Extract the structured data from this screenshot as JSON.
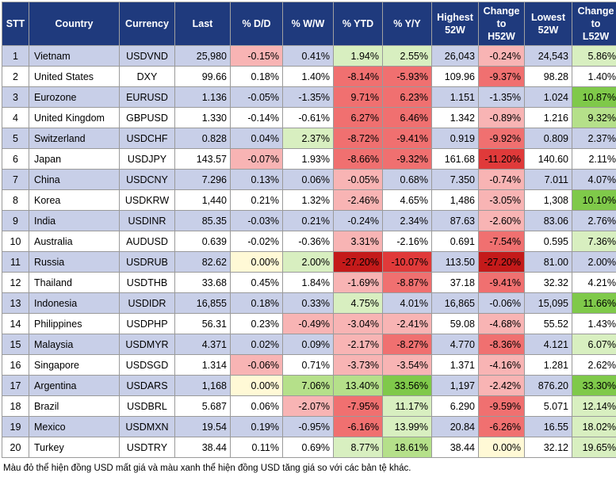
{
  "headers": [
    "STT",
    "Country",
    "Currency",
    "Last",
    "% D/D",
    "% W/W",
    "% YTD",
    "% Y/Y",
    "Highest 52W",
    "Change to H52W",
    "Lowest 52W",
    "Change to L52W"
  ],
  "colors": {
    "header_bg": "#1f3a7d",
    "row_band": "#c8cfe8",
    "red_light": "#f8b4b4",
    "red_mid": "#f07070",
    "red_strong": "#e03a3a",
    "red_dark": "#c41a1a",
    "yellow": "#fff9d6",
    "green_light": "#d8efc0",
    "green_mid": "#b5e08a",
    "green_strong": "#7fc94a"
  },
  "rows": [
    {
      "stt": "1",
      "country": "Vietnam",
      "currency": "USDVND",
      "last": "25,980",
      "dd": "-0.15%",
      "ww": "0.41%",
      "ytd": "1.94%",
      "yy": "2.55%",
      "h52": "26,043",
      "ch52": "-0.24%",
      "l52": "24,543",
      "cl52": "5.86%",
      "tone": {
        "dd": "red_light",
        "ww": "",
        "ytd": "green_light",
        "yy": "green_light",
        "ch52": "red_light",
        "cl52": "green_light"
      }
    },
    {
      "stt": "2",
      "country": "United States",
      "currency": "DXY",
      "last": "99.66",
      "dd": "0.18%",
      "ww": "1.40%",
      "ytd": "-8.14%",
      "yy": "-5.93%",
      "h52": "109.96",
      "ch52": "-9.37%",
      "l52": "98.28",
      "cl52": "1.40%",
      "tone": {
        "dd": "",
        "ww": "",
        "ytd": "red_mid",
        "yy": "red_mid",
        "ch52": "red_mid",
        "cl52": ""
      }
    },
    {
      "stt": "3",
      "country": "Eurozone",
      "currency": "EURUSD",
      "last": "1.136",
      "dd": "-0.05%",
      "ww": "-1.35%",
      "ytd": "9.71%",
      "yy": "6.23%",
      "h52": "1.151",
      "ch52": "-1.35%",
      "l52": "1.024",
      "cl52": "10.87%",
      "tone": {
        "dd": "",
        "ww": "",
        "ytd": "red_mid",
        "yy": "red_mid",
        "ch52": "",
        "cl52": "green_strong"
      }
    },
    {
      "stt": "4",
      "country": "United Kingdom",
      "currency": "GBPUSD",
      "last": "1.330",
      "dd": "-0.14%",
      "ww": "-0.61%",
      "ytd": "6.27%",
      "yy": "6.46%",
      "h52": "1.342",
      "ch52": "-0.89%",
      "l52": "1.216",
      "cl52": "9.32%",
      "tone": {
        "dd": "",
        "ww": "",
        "ytd": "red_mid",
        "yy": "red_mid",
        "ch52": "red_light",
        "cl52": "green_mid"
      }
    },
    {
      "stt": "5",
      "country": "Switzerland",
      "currency": "USDCHF",
      "last": "0.828",
      "dd": "0.04%",
      "ww": "2.37%",
      "ytd": "-8.72%",
      "yy": "-9.41%",
      "h52": "0.919",
      "ch52": "-9.92%",
      "l52": "0.809",
      "cl52": "2.37%",
      "tone": {
        "dd": "",
        "ww": "green_light",
        "ytd": "red_mid",
        "yy": "red_mid",
        "ch52": "red_mid",
        "cl52": ""
      }
    },
    {
      "stt": "6",
      "country": "Japan",
      "currency": "USDJPY",
      "last": "143.57",
      "dd": "-0.07%",
      "ww": "1.93%",
      "ytd": "-8.66%",
      "yy": "-9.32%",
      "h52": "161.68",
      "ch52": "-11.20%",
      "l52": "140.60",
      "cl52": "2.11%",
      "tone": {
        "dd": "red_light",
        "ww": "",
        "ytd": "red_mid",
        "yy": "red_mid",
        "ch52": "red_strong",
        "cl52": ""
      }
    },
    {
      "stt": "7",
      "country": "China",
      "currency": "USDCNY",
      "last": "7.296",
      "dd": "0.13%",
      "ww": "0.06%",
      "ytd": "-0.05%",
      "yy": "0.68%",
      "h52": "7.350",
      "ch52": "-0.74%",
      "l52": "7.011",
      "cl52": "4.07%",
      "tone": {
        "dd": "",
        "ww": "",
        "ytd": "red_light",
        "yy": "",
        "ch52": "red_light",
        "cl52": ""
      }
    },
    {
      "stt": "8",
      "country": "Korea",
      "currency": "USDKRW",
      "last": "1,440",
      "dd": "0.21%",
      "ww": "1.32%",
      "ytd": "-2.46%",
      "yy": "4.65%",
      "h52": "1,486",
      "ch52": "-3.05%",
      "l52": "1,308",
      "cl52": "10.10%",
      "tone": {
        "dd": "",
        "ww": "",
        "ytd": "red_light",
        "yy": "",
        "ch52": "red_light",
        "cl52": "green_strong"
      }
    },
    {
      "stt": "9",
      "country": "India",
      "currency": "USDINR",
      "last": "85.35",
      "dd": "-0.03%",
      "ww": "0.21%",
      "ytd": "-0.24%",
      "yy": "2.34%",
      "h52": "87.63",
      "ch52": "-2.60%",
      "l52": "83.06",
      "cl52": "2.76%",
      "tone": {
        "dd": "",
        "ww": "",
        "ytd": "",
        "yy": "",
        "ch52": "red_light",
        "cl52": ""
      }
    },
    {
      "stt": "10",
      "country": "Australia",
      "currency": "AUDUSD",
      "last": "0.639",
      "dd": "-0.02%",
      "ww": "-0.36%",
      "ytd": "3.31%",
      "yy": "-2.16%",
      "h52": "0.691",
      "ch52": "-7.54%",
      "l52": "0.595",
      "cl52": "7.36%",
      "tone": {
        "dd": "",
        "ww": "",
        "ytd": "red_light",
        "yy": "",
        "ch52": "red_mid",
        "cl52": "green_light"
      }
    },
    {
      "stt": "11",
      "country": "Russia",
      "currency": "USDRUB",
      "last": "82.62",
      "dd": "0.00%",
      "ww": "2.00%",
      "ytd": "-27.20%",
      "yy": "-10.07%",
      "h52": "113.50",
      "ch52": "-27.20%",
      "l52": "81.00",
      "cl52": "2.00%",
      "tone": {
        "dd": "yellow",
        "ww": "green_light",
        "ytd": "red_dark",
        "yy": "red_strong",
        "ch52": "red_dark",
        "cl52": ""
      }
    },
    {
      "stt": "12",
      "country": "Thailand",
      "currency": "USDTHB",
      "last": "33.68",
      "dd": "0.45%",
      "ww": "1.84%",
      "ytd": "-1.69%",
      "yy": "-8.87%",
      "h52": "37.18",
      "ch52": "-9.41%",
      "l52": "32.32",
      "cl52": "4.21%",
      "tone": {
        "dd": "",
        "ww": "",
        "ytd": "red_light",
        "yy": "red_mid",
        "ch52": "red_mid",
        "cl52": ""
      }
    },
    {
      "stt": "13",
      "country": "Indonesia",
      "currency": "USDIDR",
      "last": "16,855",
      "dd": "0.18%",
      "ww": "0.33%",
      "ytd": "4.75%",
      "yy": "4.01%",
      "h52": "16,865",
      "ch52": "-0.06%",
      "l52": "15,095",
      "cl52": "11.66%",
      "tone": {
        "dd": "",
        "ww": "",
        "ytd": "green_light",
        "yy": "",
        "ch52": "",
        "cl52": "green_strong"
      }
    },
    {
      "stt": "14",
      "country": "Philippines",
      "currency": "USDPHP",
      "last": "56.31",
      "dd": "0.23%",
      "ww": "-0.49%",
      "ytd": "-3.04%",
      "yy": "-2.41%",
      "h52": "59.08",
      "ch52": "-4.68%",
      "l52": "55.52",
      "cl52": "1.43%",
      "tone": {
        "dd": "",
        "ww": "red_light",
        "ytd": "red_light",
        "yy": "red_light",
        "ch52": "red_light",
        "cl52": ""
      }
    },
    {
      "stt": "15",
      "country": "Malaysia",
      "currency": "USDMYR",
      "last": "4.371",
      "dd": "0.02%",
      "ww": "0.09%",
      "ytd": "-2.17%",
      "yy": "-8.27%",
      "h52": "4.770",
      "ch52": "-8.36%",
      "l52": "4.121",
      "cl52": "6.07%",
      "tone": {
        "dd": "",
        "ww": "",
        "ytd": "red_light",
        "yy": "red_mid",
        "ch52": "red_mid",
        "cl52": "green_light"
      }
    },
    {
      "stt": "16",
      "country": "Singapore",
      "currency": "USDSGD",
      "last": "1.314",
      "dd": "-0.06%",
      "ww": "0.71%",
      "ytd": "-3.73%",
      "yy": "-3.54%",
      "h52": "1.371",
      "ch52": "-4.16%",
      "l52": "1.281",
      "cl52": "2.62%",
      "tone": {
        "dd": "red_light",
        "ww": "",
        "ytd": "red_light",
        "yy": "red_light",
        "ch52": "red_light",
        "cl52": ""
      }
    },
    {
      "stt": "17",
      "country": "Argentina",
      "currency": "USDARS",
      "last": "1,168",
      "dd": "0.00%",
      "ww": "7.06%",
      "ytd": "13.40%",
      "yy": "33.56%",
      "h52": "1,197",
      "ch52": "-2.42%",
      "l52": "876.20",
      "cl52": "33.30%",
      "tone": {
        "dd": "yellow",
        "ww": "green_mid",
        "ytd": "green_mid",
        "yy": "green_strong",
        "ch52": "red_light",
        "cl52": "green_strong"
      }
    },
    {
      "stt": "18",
      "country": "Brazil",
      "currency": "USDBRL",
      "last": "5.687",
      "dd": "0.06%",
      "ww": "-2.07%",
      "ytd": "-7.95%",
      "yy": "11.17%",
      "h52": "6.290",
      "ch52": "-9.59%",
      "l52": "5.071",
      "cl52": "12.14%",
      "tone": {
        "dd": "",
        "ww": "red_light",
        "ytd": "red_mid",
        "yy": "green_light",
        "ch52": "red_mid",
        "cl52": "green_light"
      }
    },
    {
      "stt": "19",
      "country": "Mexico",
      "currency": "USDMXN",
      "last": "19.54",
      "dd": "0.19%",
      "ww": "-0.95%",
      "ytd": "-6.16%",
      "yy": "13.99%",
      "h52": "20.84",
      "ch52": "-6.26%",
      "l52": "16.55",
      "cl52": "18.02%",
      "tone": {
        "dd": "",
        "ww": "",
        "ytd": "red_mid",
        "yy": "green_light",
        "ch52": "red_mid",
        "cl52": "green_light"
      }
    },
    {
      "stt": "20",
      "country": "Turkey",
      "currency": "USDTRY",
      "last": "38.44",
      "dd": "0.11%",
      "ww": "0.69%",
      "ytd": "8.77%",
      "yy": "18.61%",
      "h52": "38.44",
      "ch52": "0.00%",
      "l52": "32.12",
      "cl52": "19.65%",
      "tone": {
        "dd": "",
        "ww": "",
        "ytd": "green_light",
        "yy": "green_mid",
        "ch52": "yellow",
        "cl52": "green_light"
      }
    }
  ],
  "footnote": "Màu đỏ thể hiện đồng USD mất giá và màu xanh thể hiện đồng USD tăng giá so với các bản tệ khác."
}
